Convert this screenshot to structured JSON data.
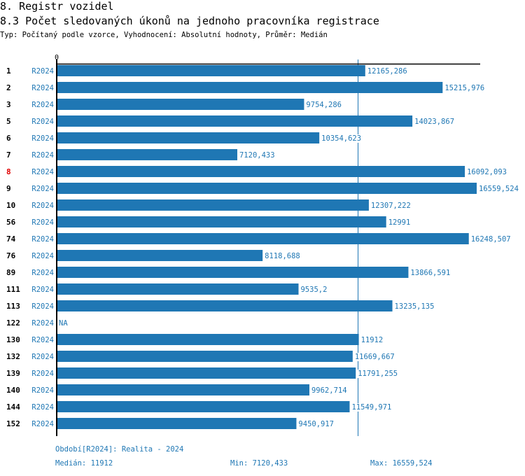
{
  "header": {
    "title": "8. Registr vozidel",
    "subtitle": "8.3 Počet sledovaných úkonů na jednoho pracovníka registrace",
    "type_line": "Typ: Počítaný podle vzorce, Vyhodnocení: Absolutní hodnoty, Průměr: Medián"
  },
  "colors": {
    "bar": "#1f77b4",
    "label": "#1f77b4",
    "highlight_id": "#e00000",
    "axis": "#000000"
  },
  "chart_data": {
    "type": "bar",
    "orientation": "horizontal",
    "title": "8.3 Počet sledovaných úkonů na jednoho pracovníka registrace",
    "xlabel": "",
    "ylabel": "",
    "x_tick_labels": [
      "0"
    ],
    "xlim": [
      0,
      16559.524
    ],
    "median": 11912,
    "median_line": true,
    "series_label": "R2024",
    "highlighted_category": "8",
    "categories": [
      "1",
      "2",
      "3",
      "5",
      "6",
      "7",
      "8",
      "9",
      "10",
      "56",
      "74",
      "76",
      "89",
      "111",
      "113",
      "122",
      "130",
      "132",
      "139",
      "140",
      "144",
      "152"
    ],
    "values": [
      12165.286,
      15215.976,
      9754.286,
      14023.867,
      10354.623,
      7120.433,
      16092.093,
      16559.524,
      12307.222,
      12991,
      16248.507,
      8118.688,
      13866.591,
      9535.2,
      13235.135,
      null,
      11912,
      11669.667,
      11791.255,
      9962.714,
      11549.971,
      9450.917
    ],
    "value_labels": [
      "12165,286",
      "15215,976",
      "9754,286",
      "14023,867",
      "10354,623",
      "7120,433",
      "16092,093",
      "16559,524",
      "12307,222",
      "12991",
      "16248,507",
      "8118,688",
      "13866,591",
      "9535,2",
      "13235,135",
      "NA",
      "11912",
      "11669,667",
      "11791,255",
      "9962,714",
      "11549,971",
      "9450,917"
    ]
  },
  "footer": {
    "period": "Období[R2024]: Realita - 2024",
    "median": "Medián: 11912",
    "min": "Min: 7120,433",
    "max": "Max: 16559,524"
  }
}
